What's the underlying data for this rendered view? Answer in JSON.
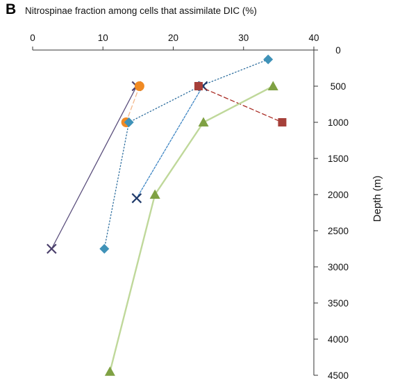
{
  "panel_label": "B",
  "chart_data": {
    "type": "line",
    "title": "Nitrospinae fraction among cells that assimilate DIC (%)",
    "xlabel": "",
    "ylabel": "Depth (m)",
    "xlim": [
      0,
      40
    ],
    "ylim": [
      0,
      4500
    ],
    "x_axis_position": "top",
    "y_axis_position": "right",
    "y_inverted": true,
    "x_ticks": [
      0,
      10,
      20,
      30,
      40
    ],
    "y_ticks": [
      0,
      500,
      1000,
      1500,
      2000,
      2500,
      3000,
      3500,
      4000,
      4500
    ],
    "grid": false,
    "legend": "none",
    "series": [
      {
        "marker": "x",
        "color": "#4a3f6b",
        "line_color": "#5a4e7c",
        "line_style": "solid",
        "points": [
          {
            "x": 14.8,
            "depth": 500
          },
          {
            "x": 2.7,
            "depth": 2750
          }
        ]
      },
      {
        "marker": "circle",
        "color": "#f08a24",
        "line_color": "#f4b98c",
        "line_style": "dashed",
        "points": [
          {
            "x": 15.2,
            "depth": 500
          },
          {
            "x": 13.3,
            "depth": 1000
          }
        ]
      },
      {
        "marker": "diamond",
        "color": "#3f92b8",
        "line_color": "#2f6f9f",
        "line_style": "dotted",
        "points": [
          {
            "x": 33.5,
            "depth": 130
          },
          {
            "x": 23.8,
            "depth": 500
          },
          {
            "x": 13.7,
            "depth": 1000
          },
          {
            "x": 10.2,
            "depth": 2750
          }
        ]
      },
      {
        "marker": "x",
        "color": "#1f3a6a",
        "line_color": "#3f86c4",
        "line_style": "dash-dot",
        "points": [
          {
            "x": 24.2,
            "depth": 500
          },
          {
            "x": 14.8,
            "depth": 2050
          }
        ]
      },
      {
        "marker": "square",
        "color": "#a6403a",
        "line_color": "#a82820",
        "line_style": "dashed",
        "points": [
          {
            "x": 23.6,
            "depth": 500
          },
          {
            "x": 35.5,
            "depth": 1000
          }
        ]
      },
      {
        "marker": "triangle",
        "color": "#7fa143",
        "line_color": "#bfd89a",
        "line_style": "solid",
        "points": [
          {
            "x": 34.2,
            "depth": 500
          },
          {
            "x": 24.3,
            "depth": 1000
          },
          {
            "x": 17.4,
            "depth": 2000
          },
          {
            "x": 11.0,
            "depth": 4450
          }
        ]
      }
    ]
  }
}
